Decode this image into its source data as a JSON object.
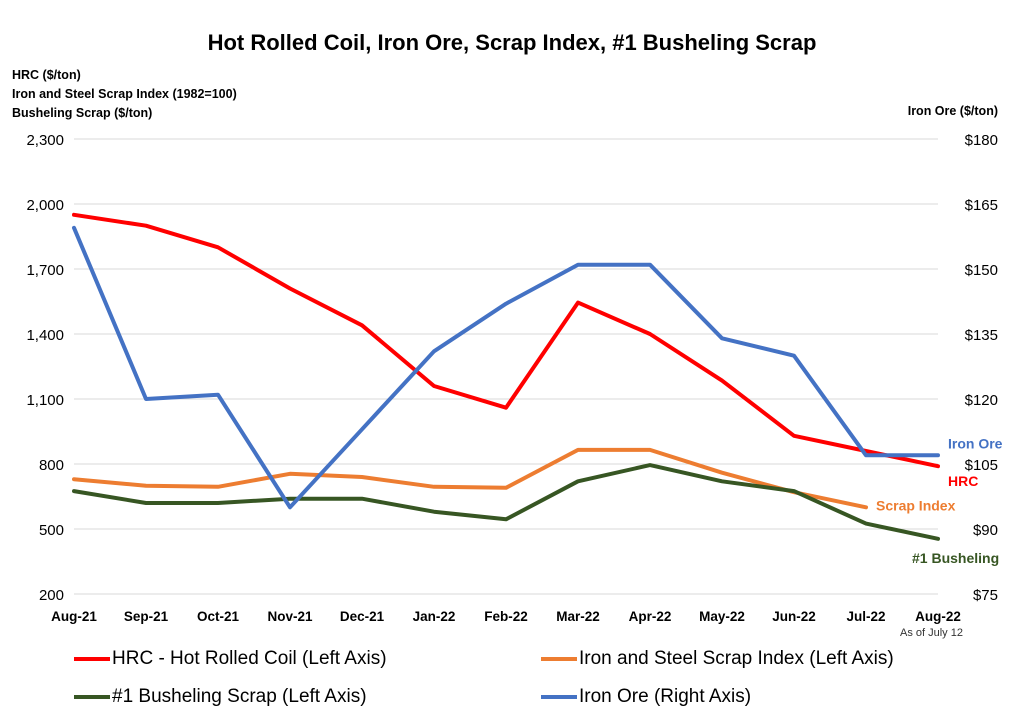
{
  "title": "Hot Rolled Coil, Iron Ore, Scrap Index, #1 Busheling Scrap",
  "left_axis_titles": [
    "HRC ($/ton)",
    "Iron and Steel Scrap Index (1982=100)",
    "Busheling Scrap ($/ton)"
  ],
  "right_axis_title": "Iron Ore ($/ton)",
  "note": "As of July 12",
  "colors": {
    "hrc": "#ff0000",
    "scrap": "#ed7d31",
    "busheling": "#375623",
    "ore": "#4472c4",
    "grid": "#d9d9d9"
  },
  "chart_data": {
    "type": "line",
    "title": "Hot Rolled Coil, Iron Ore, Scrap Index, #1 Busheling Scrap",
    "categories": [
      "Aug-21",
      "Sep-21",
      "Oct-21",
      "Nov-21",
      "Dec-21",
      "Jan-22",
      "Feb-22",
      "Mar-22",
      "Apr-22",
      "May-22",
      "Jun-22",
      "Jul-22",
      "Aug-22"
    ],
    "y_left": {
      "label": "HRC ($/ton) / Iron and Steel Scrap Index (1982=100) / Busheling Scrap ($/ton)",
      "ylim": [
        200,
        2300
      ],
      "ticks": [
        200,
        500,
        800,
        1100,
        1400,
        1700,
        2000,
        2300
      ],
      "tick_labels": [
        "200",
        "500",
        "800",
        "1,100",
        "1,400",
        "1,700",
        "2,000",
        "2,300"
      ]
    },
    "y_right": {
      "label": "Iron Ore ($/ton)",
      "ylim": [
        75,
        180
      ],
      "ticks": [
        75,
        90,
        105,
        120,
        135,
        150,
        165,
        180
      ],
      "tick_labels": [
        "$75",
        "$90",
        "$105",
        "$120",
        "$135",
        "$150",
        "$165",
        "$180"
      ]
    },
    "grid": true,
    "legend_position": "bottom",
    "series": [
      {
        "key": "hrc",
        "name": "HRC - Hot Rolled Coil (Left Axis)",
        "end_label": "HRC",
        "axis": "left",
        "values": [
          1950,
          1900,
          1800,
          1610,
          1440,
          1160,
          1060,
          1545,
          1400,
          1185,
          930,
          860,
          790
        ]
      },
      {
        "key": "scrap",
        "name": "Iron and Steel Scrap Index (Left Axis)",
        "end_label": "Scrap Index",
        "axis": "left",
        "values": [
          730,
          700,
          695,
          755,
          740,
          695,
          690,
          865,
          865,
          760,
          670,
          600,
          null
        ]
      },
      {
        "key": "busheling",
        "name": "#1 Busheling Scrap (Left Axis)",
        "end_label": "#1 Busheling",
        "axis": "left",
        "values": [
          675,
          620,
          620,
          640,
          640,
          580,
          545,
          720,
          795,
          720,
          675,
          525,
          455
        ]
      },
      {
        "key": "ore",
        "name": "Iron Ore (Right Axis)",
        "end_label": "Iron Ore",
        "axis": "right",
        "values": [
          159.5,
          120,
          121,
          95,
          113,
          131,
          142,
          151,
          151,
          134,
          130,
          107,
          107
        ]
      }
    ]
  }
}
